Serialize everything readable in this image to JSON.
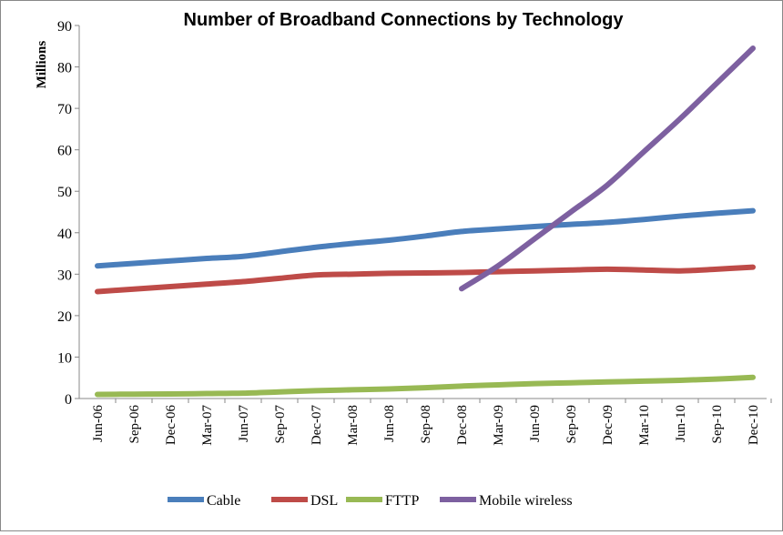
{
  "chart_data": {
    "type": "line",
    "title": "Number of Broadband Connections by Technology",
    "xlabel": "",
    "ylabel": "Millions",
    "ylim": [
      0,
      90
    ],
    "yticks": [
      0,
      10,
      20,
      30,
      40,
      50,
      60,
      70,
      80,
      90
    ],
    "grid": false,
    "legend_position": "bottom",
    "categories": [
      "Jun-06",
      "Sep-06",
      "Dec-06",
      "Mar-07",
      "Jun-07",
      "Sep-07",
      "Dec-07",
      "Mar-08",
      "Jun-08",
      "Sep-08",
      "Dec-08",
      "Mar-09",
      "Jun-09",
      "Sep-09",
      "Dec-09",
      "Mar-10",
      "Jun-10",
      "Sep-10",
      "Dec-10"
    ],
    "series": [
      {
        "name": "Cable",
        "color": "#4a7ebb",
        "values": [
          32.0,
          32.6,
          33.2,
          33.8,
          34.3,
          35.4,
          36.5,
          37.4,
          38.2,
          39.2,
          40.3,
          40.9,
          41.5,
          42.0,
          42.5,
          43.2,
          44.0,
          44.7,
          45.3
        ]
      },
      {
        "name": "DSL",
        "color": "#be4b48",
        "values": [
          25.8,
          26.4,
          27.0,
          27.6,
          28.2,
          29.0,
          29.8,
          30.0,
          30.2,
          30.3,
          30.4,
          30.6,
          30.8,
          31.0,
          31.2,
          31.0,
          30.8,
          31.2,
          31.7
        ]
      },
      {
        "name": "FTTP",
        "color": "#98b954",
        "values": [
          1.0,
          1.05,
          1.1,
          1.2,
          1.3,
          1.6,
          1.9,
          2.1,
          2.3,
          2.6,
          3.0,
          3.3,
          3.6,
          3.8,
          4.0,
          4.2,
          4.4,
          4.7,
          5.1
        ]
      },
      {
        "name": "Mobile wireless",
        "color": "#7d60a0",
        "values": [
          null,
          null,
          null,
          null,
          null,
          null,
          null,
          null,
          null,
          null,
          26.5,
          32.0,
          38.5,
          45.0,
          51.5,
          59.5,
          67.5,
          76.0,
          84.5
        ]
      }
    ]
  }
}
